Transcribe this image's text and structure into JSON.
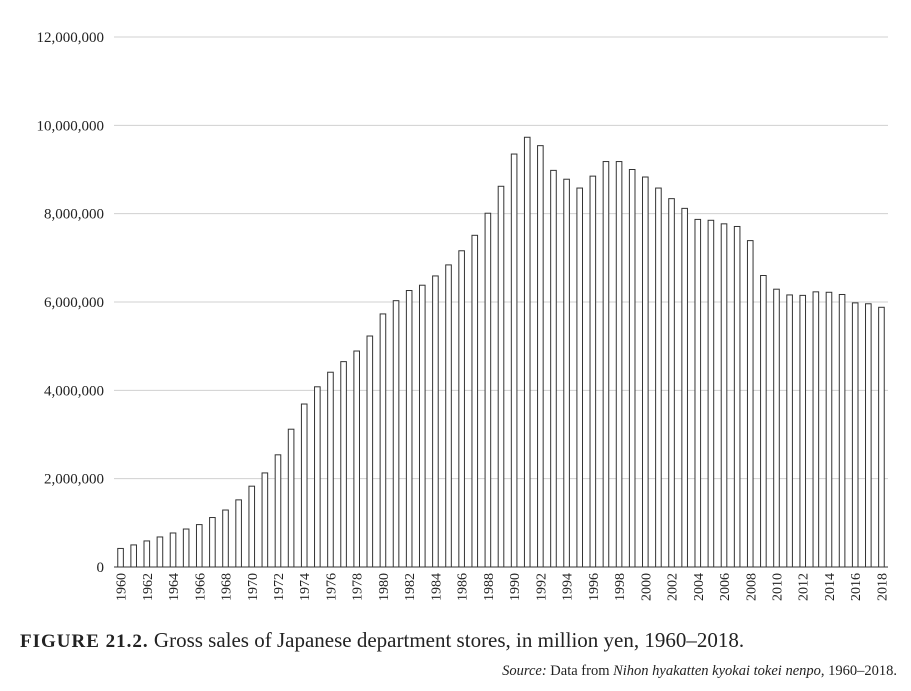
{
  "chart_data": {
    "type": "bar",
    "title": "",
    "xlabel": "",
    "ylabel": "",
    "ylim": [
      0,
      12000000
    ],
    "y_ticks": [
      0,
      2000000,
      4000000,
      6000000,
      8000000,
      10000000,
      12000000
    ],
    "y_tick_labels": [
      "0",
      "2,000,000",
      "4,000,000",
      "6,000,000",
      "8,000,000",
      "10,000,000",
      "12,000,000"
    ],
    "grid": true,
    "categories": [
      "1960",
      "1961",
      "1962",
      "1963",
      "1964",
      "1965",
      "1966",
      "1967",
      "1968",
      "1969",
      "1970",
      "1971",
      "1972",
      "1973",
      "1974",
      "1975",
      "1976",
      "1977",
      "1978",
      "1979",
      "1980",
      "1981",
      "1982",
      "1983",
      "1984",
      "1985",
      "1986",
      "1987",
      "1988",
      "1989",
      "1990",
      "1991",
      "1992",
      "1993",
      "1994",
      "1995",
      "1996",
      "1997",
      "1998",
      "1999",
      "2000",
      "2001",
      "2002",
      "2003",
      "2004",
      "2005",
      "2006",
      "2007",
      "2008",
      "2009",
      "2010",
      "2011",
      "2012",
      "2013",
      "2014",
      "2015",
      "2016",
      "2017",
      "2018"
    ],
    "x_tick_labels": [
      "1960",
      "1962",
      "1964",
      "1966",
      "1968",
      "1970",
      "1972",
      "1974",
      "1976",
      "1978",
      "1980",
      "1982",
      "1984",
      "1986",
      "1988",
      "1990",
      "1992",
      "1994",
      "1996",
      "1998",
      "2000",
      "2002",
      "2004",
      "2006",
      "2008",
      "2010",
      "2012",
      "2014",
      "2016",
      "2018"
    ],
    "values": [
      420000,
      500000,
      590000,
      680000,
      770000,
      860000,
      960000,
      1120000,
      1290000,
      1520000,
      1830000,
      2130000,
      2540000,
      3120000,
      3690000,
      4080000,
      4410000,
      4650000,
      4890000,
      5230000,
      5730000,
      6030000,
      6260000,
      6380000,
      6590000,
      6840000,
      7160000,
      7510000,
      8010000,
      8620000,
      9350000,
      9730000,
      9540000,
      8980000,
      8780000,
      8580000,
      8850000,
      9180000,
      9180000,
      9000000,
      8830000,
      8580000,
      8340000,
      8120000,
      7870000,
      7850000,
      7770000,
      7710000,
      7390000,
      6600000,
      6290000,
      6160000,
      6150000,
      6230000,
      6220000,
      6170000,
      5980000,
      5960000,
      5880000
    ]
  },
  "caption": {
    "label": "FIGURE 21.2.",
    "text": "Gross sales of Japanese department stores, in million yen, 1960–2018."
  },
  "source": {
    "prefix": "Source:",
    "text_before": "Data from",
    "title": "Nihon hyakatten kyokai tokei nenpo",
    "suffix": ", 1960–2018."
  }
}
